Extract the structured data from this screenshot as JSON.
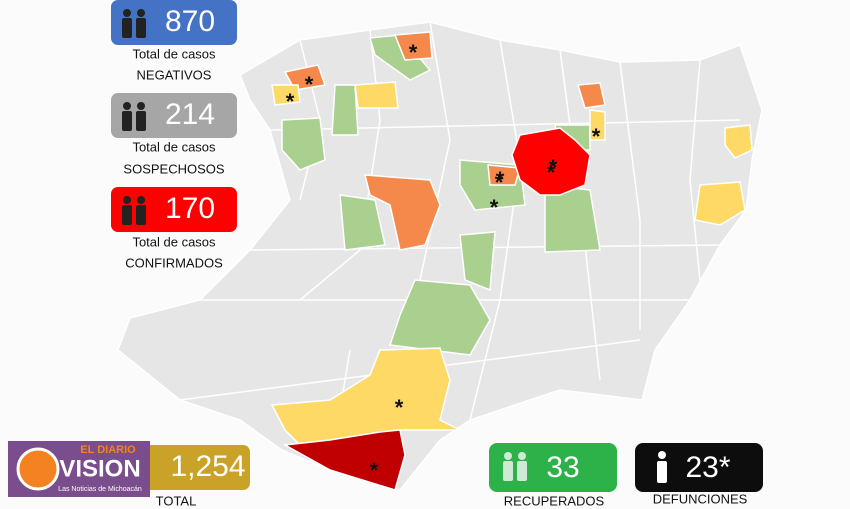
{
  "badges": [
    {
      "value": "870",
      "line1": "Total de casos",
      "line2": "NEGATIVOS"
    },
    {
      "value": "214",
      "line1": "Total de casos",
      "line2": "SOSPECHOSOS"
    },
    {
      "value": "170",
      "line1": "Total de casos",
      "line2": "CONFIRMADOS"
    }
  ],
  "totals": [
    {
      "value": "1,254",
      "label": "TOTAL"
    },
    {
      "value": "33",
      "label": "RECUPERADOS"
    },
    {
      "value": "23*",
      "label": "DEFUNCIONES"
    }
  ],
  "logo": {
    "top": "EL DIARIO",
    "name": "VISION",
    "tagline": "Las Noticias de Michoacán"
  },
  "map": {
    "markers": [
      "*",
      "*",
      "*",
      "*",
      "*",
      "*",
      "*",
      "*",
      "*",
      "*",
      "*"
    ]
  }
}
